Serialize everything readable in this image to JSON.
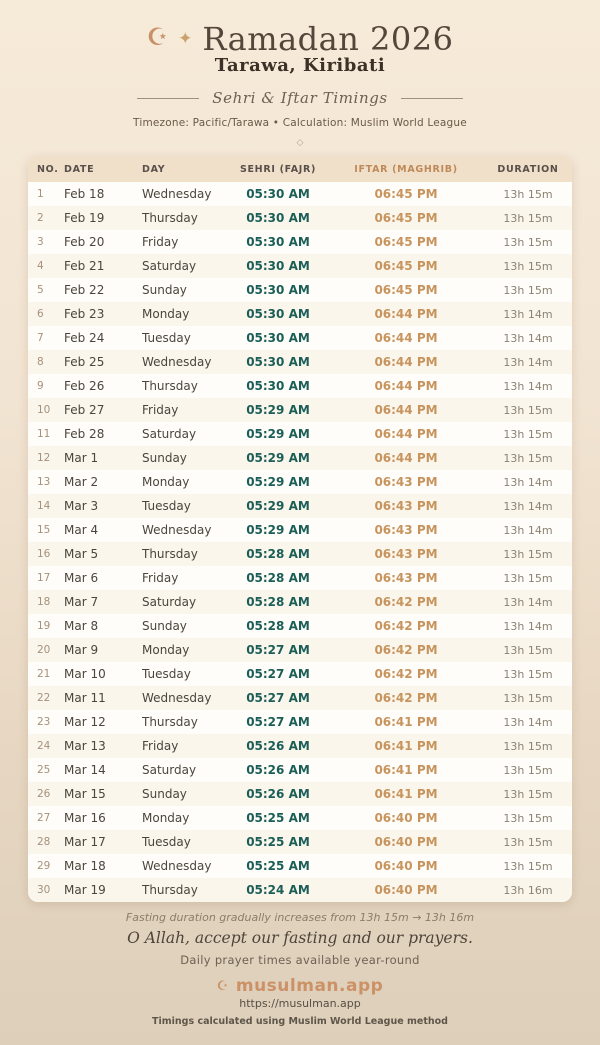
{
  "header": {
    "crescent_icon": "☪",
    "sparkle_icon": "✦",
    "title": "Ramadan 2026",
    "location": "Tarawa, Kiribati",
    "subtitle": "Sehri & Iftar Timings",
    "meta": "Timezone: Pacific/Tarawa • Calculation: Muslim World League",
    "ornament": "◇"
  },
  "table": {
    "columns": [
      "NO.",
      "DATE",
      "DAY",
      "SEHRI (FAJR)",
      "IFTAR (MAGHRIB)",
      "DURATION"
    ],
    "rows": [
      {
        "no": "1",
        "date": "Feb 18",
        "day": "Wednesday",
        "sehri": "05:30 AM",
        "iftar": "06:45 PM",
        "duration": "13h 15m"
      },
      {
        "no": "2",
        "date": "Feb 19",
        "day": "Thursday",
        "sehri": "05:30 AM",
        "iftar": "06:45 PM",
        "duration": "13h 15m"
      },
      {
        "no": "3",
        "date": "Feb 20",
        "day": "Friday",
        "sehri": "05:30 AM",
        "iftar": "06:45 PM",
        "duration": "13h 15m"
      },
      {
        "no": "4",
        "date": "Feb 21",
        "day": "Saturday",
        "sehri": "05:30 AM",
        "iftar": "06:45 PM",
        "duration": "13h 15m"
      },
      {
        "no": "5",
        "date": "Feb 22",
        "day": "Sunday",
        "sehri": "05:30 AM",
        "iftar": "06:45 PM",
        "duration": "13h 15m"
      },
      {
        "no": "6",
        "date": "Feb 23",
        "day": "Monday",
        "sehri": "05:30 AM",
        "iftar": "06:44 PM",
        "duration": "13h 14m"
      },
      {
        "no": "7",
        "date": "Feb 24",
        "day": "Tuesday",
        "sehri": "05:30 AM",
        "iftar": "06:44 PM",
        "duration": "13h 14m"
      },
      {
        "no": "8",
        "date": "Feb 25",
        "day": "Wednesday",
        "sehri": "05:30 AM",
        "iftar": "06:44 PM",
        "duration": "13h 14m"
      },
      {
        "no": "9",
        "date": "Feb 26",
        "day": "Thursday",
        "sehri": "05:30 AM",
        "iftar": "06:44 PM",
        "duration": "13h 14m"
      },
      {
        "no": "10",
        "date": "Feb 27",
        "day": "Friday",
        "sehri": "05:29 AM",
        "iftar": "06:44 PM",
        "duration": "13h 15m"
      },
      {
        "no": "11",
        "date": "Feb 28",
        "day": "Saturday",
        "sehri": "05:29 AM",
        "iftar": "06:44 PM",
        "duration": "13h 15m"
      },
      {
        "no": "12",
        "date": "Mar 1",
        "day": "Sunday",
        "sehri": "05:29 AM",
        "iftar": "06:44 PM",
        "duration": "13h 15m"
      },
      {
        "no": "13",
        "date": "Mar 2",
        "day": "Monday",
        "sehri": "05:29 AM",
        "iftar": "06:43 PM",
        "duration": "13h 14m"
      },
      {
        "no": "14",
        "date": "Mar 3",
        "day": "Tuesday",
        "sehri": "05:29 AM",
        "iftar": "06:43 PM",
        "duration": "13h 14m"
      },
      {
        "no": "15",
        "date": "Mar 4",
        "day": "Wednesday",
        "sehri": "05:29 AM",
        "iftar": "06:43 PM",
        "duration": "13h 14m"
      },
      {
        "no": "16",
        "date": "Mar 5",
        "day": "Thursday",
        "sehri": "05:28 AM",
        "iftar": "06:43 PM",
        "duration": "13h 15m"
      },
      {
        "no": "17",
        "date": "Mar 6",
        "day": "Friday",
        "sehri": "05:28 AM",
        "iftar": "06:43 PM",
        "duration": "13h 15m"
      },
      {
        "no": "18",
        "date": "Mar 7",
        "day": "Saturday",
        "sehri": "05:28 AM",
        "iftar": "06:42 PM",
        "duration": "13h 14m"
      },
      {
        "no": "19",
        "date": "Mar 8",
        "day": "Sunday",
        "sehri": "05:28 AM",
        "iftar": "06:42 PM",
        "duration": "13h 14m"
      },
      {
        "no": "20",
        "date": "Mar 9",
        "day": "Monday",
        "sehri": "05:27 AM",
        "iftar": "06:42 PM",
        "duration": "13h 15m"
      },
      {
        "no": "21",
        "date": "Mar 10",
        "day": "Tuesday",
        "sehri": "05:27 AM",
        "iftar": "06:42 PM",
        "duration": "13h 15m"
      },
      {
        "no": "22",
        "date": "Mar 11",
        "day": "Wednesday",
        "sehri": "05:27 AM",
        "iftar": "06:42 PM",
        "duration": "13h 15m"
      },
      {
        "no": "23",
        "date": "Mar 12",
        "day": "Thursday",
        "sehri": "05:27 AM",
        "iftar": "06:41 PM",
        "duration": "13h 14m"
      },
      {
        "no": "24",
        "date": "Mar 13",
        "day": "Friday",
        "sehri": "05:26 AM",
        "iftar": "06:41 PM",
        "duration": "13h 15m"
      },
      {
        "no": "25",
        "date": "Mar 14",
        "day": "Saturday",
        "sehri": "05:26 AM",
        "iftar": "06:41 PM",
        "duration": "13h 15m"
      },
      {
        "no": "26",
        "date": "Mar 15",
        "day": "Sunday",
        "sehri": "05:26 AM",
        "iftar": "06:41 PM",
        "duration": "13h 15m"
      },
      {
        "no": "27",
        "date": "Mar 16",
        "day": "Monday",
        "sehri": "05:25 AM",
        "iftar": "06:40 PM",
        "duration": "13h 15m"
      },
      {
        "no": "28",
        "date": "Mar 17",
        "day": "Tuesday",
        "sehri": "05:25 AM",
        "iftar": "06:40 PM",
        "duration": "13h 15m"
      },
      {
        "no": "29",
        "date": "Mar 18",
        "day": "Wednesday",
        "sehri": "05:25 AM",
        "iftar": "06:40 PM",
        "duration": "13h 15m"
      },
      {
        "no": "30",
        "date": "Mar 19",
        "day": "Thursday",
        "sehri": "05:24 AM",
        "iftar": "06:40 PM",
        "duration": "13h 16m"
      }
    ]
  },
  "footer": {
    "duration_note": "Fasting duration gradually increases from 13h 15m → 13h 16m",
    "dua": "O Allah, accept our fasting and our prayers.",
    "availability": "Daily prayer times available year-round",
    "brand_icon": "☪",
    "brand": "musulman.app",
    "url": "https://musulman.app",
    "method_note": "Timings calculated using Muslim World League method"
  },
  "colors": {
    "sehri_time": "#1b5e57",
    "iftar_time": "#c7945e",
    "accent_brand": "#cc9166",
    "header_band": "#f0dfc9",
    "background_top": "#f6ead9",
    "background_bottom": "#ddcfba"
  }
}
